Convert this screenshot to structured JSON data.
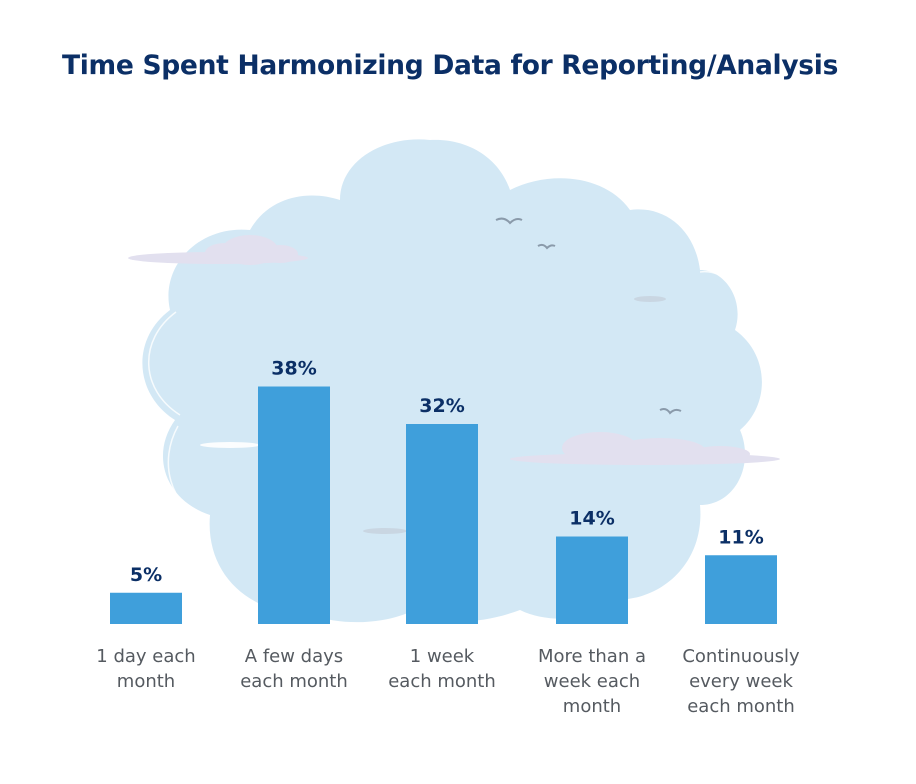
{
  "chart_data": {
    "type": "bar",
    "title": "Time Spent Harmonizing Data for Reporting/Analysis",
    "categories": [
      [
        "1 day each",
        "month"
      ],
      [
        "A few days",
        "each month"
      ],
      [
        "1 week",
        "each month"
      ],
      [
        "More than a",
        "week each",
        "month"
      ],
      [
        "Continuously",
        "every week",
        "each month"
      ]
    ],
    "values": [
      5,
      38,
      32,
      14,
      11
    ],
    "value_labels": [
      "5%",
      "38%",
      "32%",
      "14%",
      "11%"
    ],
    "unit": "%",
    "ylim": [
      0,
      40
    ],
    "grid": false,
    "legend": "none",
    "colors": {
      "bar": "#3f9fdb",
      "title": "#0b2f66",
      "value_label": "#0b2f66",
      "category_label": "#555a60",
      "cloud": "#d3e8f5",
      "small_cloud": "#e2e0ef",
      "bird": "#8a9aaa"
    }
  }
}
